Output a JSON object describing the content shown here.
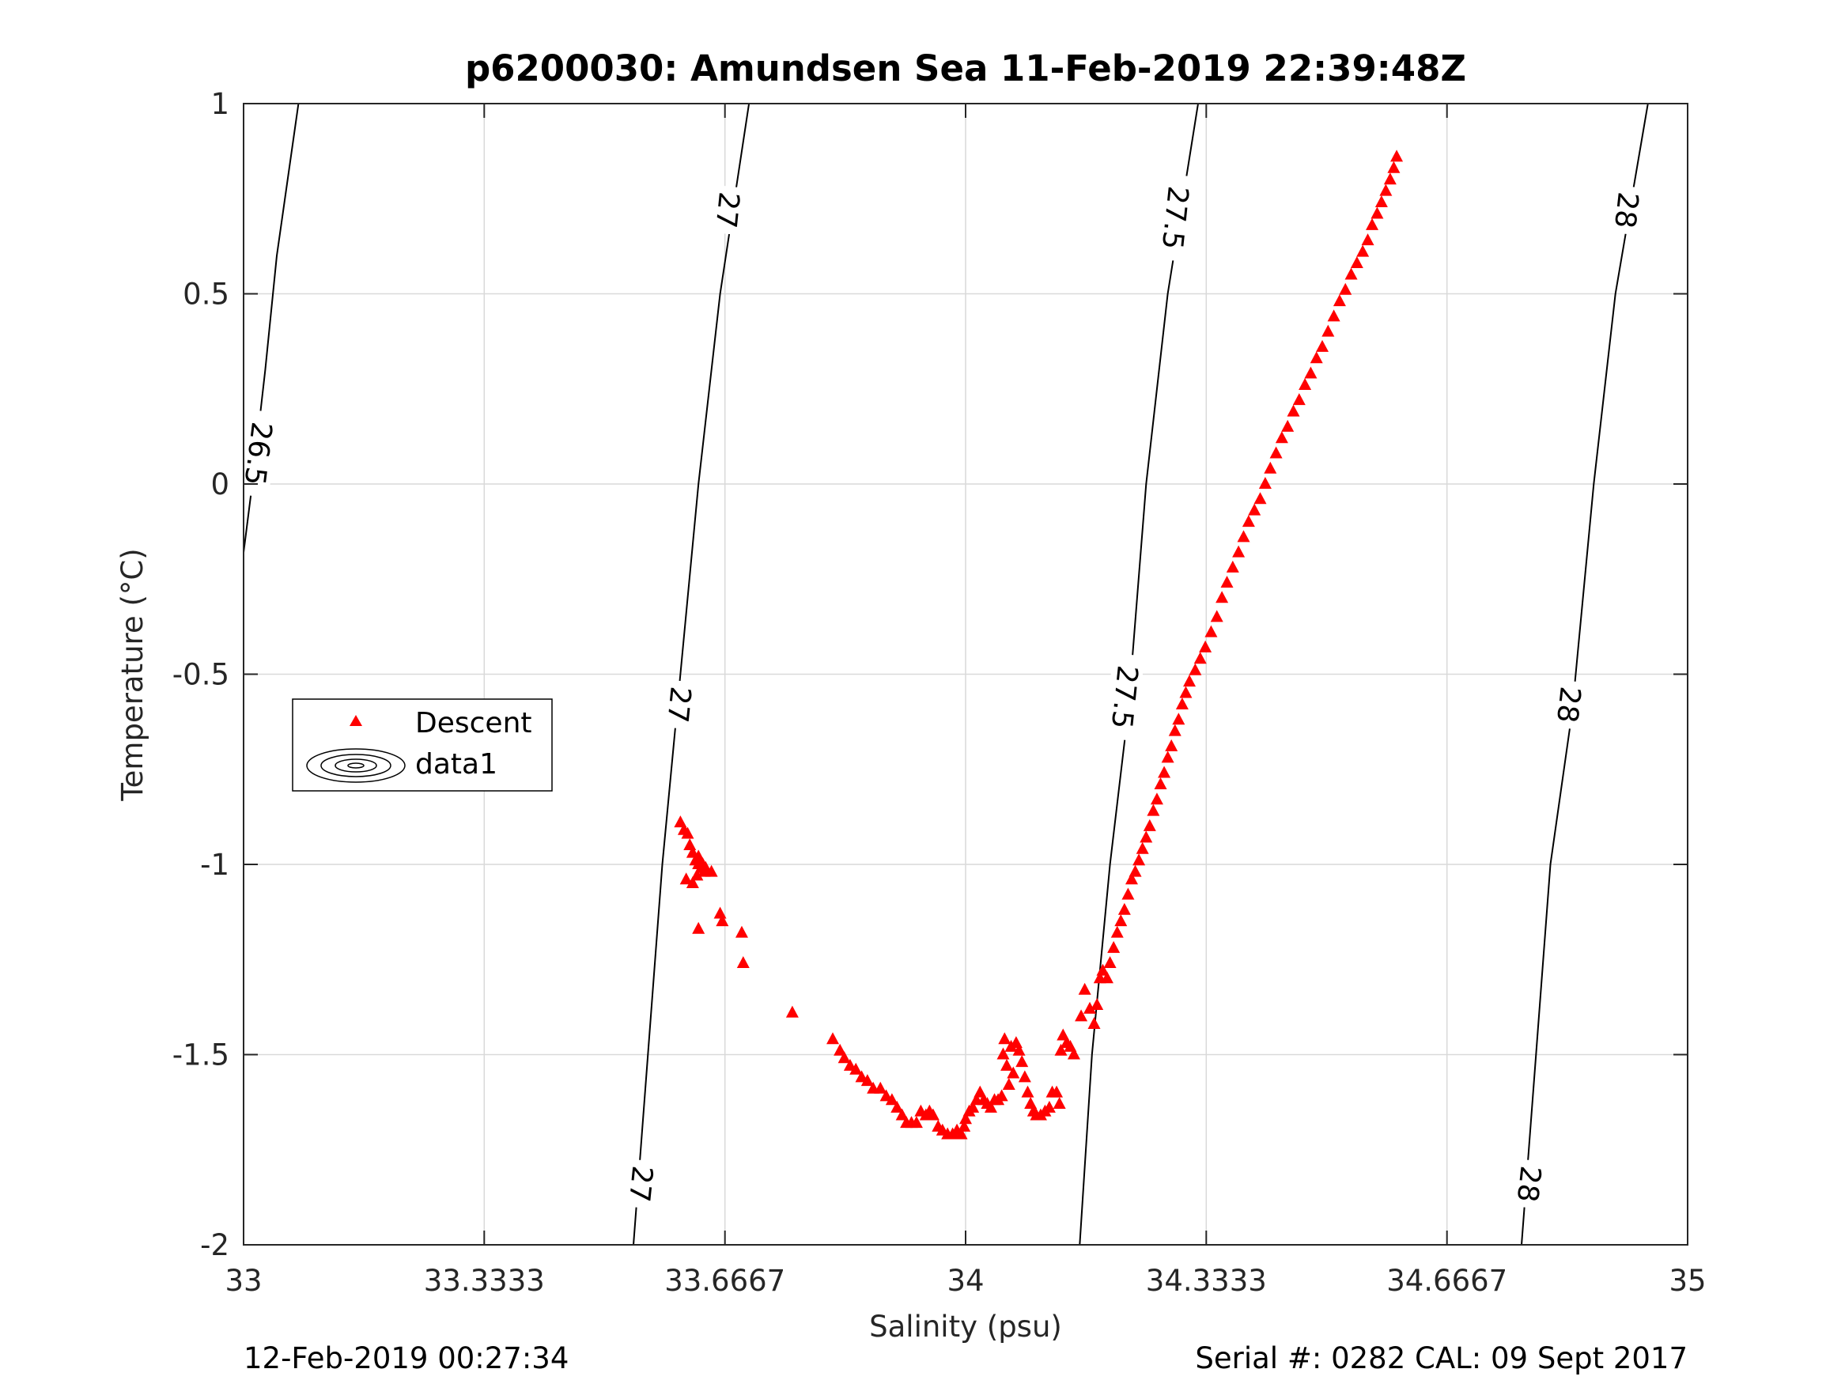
{
  "chart_data": {
    "type": "scatter",
    "title": "p6200030: Amundsen Sea 11-Feb-2019 22:39:48Z",
    "xlabel": "Salinity (psu)",
    "ylabel": "Temperature (°C)",
    "xlim": [
      33,
      35
    ],
    "ylim": [
      -2,
      1
    ],
    "xticks": [
      33,
      33.3333,
      33.6667,
      34,
      34.3333,
      34.6667,
      35
    ],
    "xtick_labels": [
      "33",
      "33.3333",
      "33.6667",
      "34",
      "34.3333",
      "34.6667",
      "35"
    ],
    "yticks": [
      -2,
      -1.5,
      -1,
      -0.5,
      0,
      0.5,
      1
    ],
    "ytick_labels": [
      "-2",
      "-1.5",
      "-1",
      "-0.5",
      "0",
      "0.5",
      "1"
    ],
    "grid": true,
    "legend_position": "left",
    "footer_left": "12-Feb-2019 00:27:34",
    "footer_right": "Serial #: 0282  CAL: 09 Sept 2017",
    "series": [
      {
        "name": "Descent",
        "marker": "triangle",
        "color": "#ff0000",
        "points": [
          [
            33.605,
            -0.89
          ],
          [
            33.61,
            -0.91
          ],
          [
            33.615,
            -0.92
          ],
          [
            33.618,
            -0.95
          ],
          [
            33.622,
            -0.97
          ],
          [
            33.626,
            -0.99
          ],
          [
            33.63,
            -1.0
          ],
          [
            33.634,
            -1.01
          ],
          [
            33.638,
            -1.02
          ],
          [
            33.628,
            -1.03
          ],
          [
            33.622,
            -1.05
          ],
          [
            33.613,
            -1.04
          ],
          [
            33.63,
            -0.98
          ],
          [
            33.64,
            -1.01
          ],
          [
            33.648,
            -1.02
          ],
          [
            33.636,
            -1.0
          ],
          [
            33.63,
            -1.17
          ],
          [
            33.66,
            -1.13
          ],
          [
            33.663,
            -1.15
          ],
          [
            33.69,
            -1.18
          ],
          [
            33.692,
            -1.26
          ],
          [
            33.76,
            -1.39
          ],
          [
            33.816,
            -1.46
          ],
          [
            33.826,
            -1.49
          ],
          [
            33.832,
            -1.51
          ],
          [
            33.84,
            -1.53
          ],
          [
            33.848,
            -1.54
          ],
          [
            33.856,
            -1.56
          ],
          [
            33.864,
            -1.57
          ],
          [
            33.872,
            -1.59
          ],
          [
            33.882,
            -1.59
          ],
          [
            33.89,
            -1.61
          ],
          [
            33.898,
            -1.62
          ],
          [
            33.905,
            -1.64
          ],
          [
            33.912,
            -1.66
          ],
          [
            33.918,
            -1.68
          ],
          [
            33.925,
            -1.68
          ],
          [
            33.932,
            -1.68
          ],
          [
            33.938,
            -1.65
          ],
          [
            33.945,
            -1.66
          ],
          [
            33.95,
            -1.65
          ],
          [
            33.955,
            -1.66
          ],
          [
            33.962,
            -1.69
          ],
          [
            33.968,
            -1.7
          ],
          [
            33.975,
            -1.71
          ],
          [
            33.982,
            -1.71
          ],
          [
            33.988,
            -1.7
          ],
          [
            33.994,
            -1.71
          ],
          [
            33.998,
            -1.69
          ],
          [
            34.0,
            -1.67
          ],
          [
            34.005,
            -1.65
          ],
          [
            34.01,
            -1.64
          ],
          [
            34.015,
            -1.62
          ],
          [
            34.02,
            -1.6
          ],
          [
            34.025,
            -1.62
          ],
          [
            34.03,
            -1.63
          ],
          [
            34.035,
            -1.64
          ],
          [
            34.04,
            -1.62
          ],
          [
            34.045,
            -1.62
          ],
          [
            34.05,
            -1.61
          ],
          [
            34.052,
            -1.5
          ],
          [
            34.054,
            -1.46
          ],
          [
            34.057,
            -1.53
          ],
          [
            34.06,
            -1.58
          ],
          [
            34.063,
            -1.48
          ],
          [
            34.066,
            -1.55
          ],
          [
            34.07,
            -1.47
          ],
          [
            34.074,
            -1.49
          ],
          [
            34.078,
            -1.52
          ],
          [
            34.082,
            -1.56
          ],
          [
            34.086,
            -1.6
          ],
          [
            34.09,
            -1.63
          ],
          [
            34.094,
            -1.65
          ],
          [
            34.098,
            -1.66
          ],
          [
            34.104,
            -1.66
          ],
          [
            34.11,
            -1.65
          ],
          [
            34.116,
            -1.64
          ],
          [
            34.12,
            -1.6
          ],
          [
            34.126,
            -1.6
          ],
          [
            34.13,
            -1.63
          ],
          [
            34.132,
            -1.49
          ],
          [
            34.135,
            -1.45
          ],
          [
            34.14,
            -1.47
          ],
          [
            34.145,
            -1.48
          ],
          [
            34.15,
            -1.5
          ],
          [
            34.16,
            -1.4
          ],
          [
            34.165,
            -1.33
          ],
          [
            34.172,
            -1.38
          ],
          [
            34.178,
            -1.42
          ],
          [
            34.182,
            -1.37
          ],
          [
            34.186,
            -1.3
          ],
          [
            34.19,
            -1.28
          ],
          [
            34.196,
            -1.3
          ],
          [
            34.2,
            -1.26
          ],
          [
            34.205,
            -1.22
          ],
          [
            34.21,
            -1.18
          ],
          [
            34.215,
            -1.15
          ],
          [
            34.22,
            -1.12
          ],
          [
            34.225,
            -1.08
          ],
          [
            34.23,
            -1.04
          ],
          [
            34.235,
            -1.02
          ],
          [
            34.24,
            -0.99
          ],
          [
            34.245,
            -0.96
          ],
          [
            34.25,
            -0.93
          ],
          [
            34.255,
            -0.9
          ],
          [
            34.26,
            -0.86
          ],
          [
            34.265,
            -0.83
          ],
          [
            34.27,
            -0.79
          ],
          [
            34.275,
            -0.76
          ],
          [
            34.28,
            -0.72
          ],
          [
            34.285,
            -0.69
          ],
          [
            34.29,
            -0.65
          ],
          [
            34.295,
            -0.62
          ],
          [
            34.3,
            -0.58
          ],
          [
            34.305,
            -0.55
          ],
          [
            34.31,
            -0.52
          ],
          [
            34.318,
            -0.49
          ],
          [
            34.325,
            -0.46
          ],
          [
            34.332,
            -0.43
          ],
          [
            34.34,
            -0.39
          ],
          [
            34.348,
            -0.35
          ],
          [
            34.355,
            -0.3
          ],
          [
            34.362,
            -0.26
          ],
          [
            34.37,
            -0.22
          ],
          [
            34.378,
            -0.18
          ],
          [
            34.385,
            -0.14
          ],
          [
            34.392,
            -0.1
          ],
          [
            34.4,
            -0.07
          ],
          [
            34.408,
            -0.04
          ],
          [
            34.415,
            0.0
          ],
          [
            34.422,
            0.04
          ],
          [
            34.43,
            0.08
          ],
          [
            34.438,
            0.12
          ],
          [
            34.446,
            0.15
          ],
          [
            34.454,
            0.19
          ],
          [
            34.462,
            0.22
          ],
          [
            34.47,
            0.26
          ],
          [
            34.478,
            0.29
          ],
          [
            34.486,
            0.33
          ],
          [
            34.494,
            0.36
          ],
          [
            34.502,
            0.4
          ],
          [
            34.51,
            0.44
          ],
          [
            34.518,
            0.48
          ],
          [
            34.526,
            0.51
          ],
          [
            34.534,
            0.55
          ],
          [
            34.542,
            0.58
          ],
          [
            34.55,
            0.61
          ],
          [
            34.557,
            0.64
          ],
          [
            34.563,
            0.68
          ],
          [
            34.57,
            0.71
          ],
          [
            34.576,
            0.74
          ],
          [
            34.582,
            0.77
          ],
          [
            34.588,
            0.8
          ],
          [
            34.593,
            0.83
          ],
          [
            34.597,
            0.86
          ]
        ]
      },
      {
        "name": "data1",
        "type": "contour",
        "color": "#000000",
        "levels": [
          {
            "label": "26.5",
            "label_positions": [
              [
                33.02,
                0.08
              ]
            ],
            "points": [
              [
                33.0,
                -0.18
              ],
              [
                33.012,
                0.0
              ],
              [
                33.03,
                0.3
              ],
              [
                33.046,
                0.6
              ],
              [
                33.076,
                1.0
              ]
            ]
          },
          {
            "label": "27",
            "label_positions": [
              [
                33.55,
                -1.84
              ],
              [
                33.603,
                -0.58
              ],
              [
                33.67,
                0.72
              ]
            ],
            "points": [
              [
                33.54,
                -2.0
              ],
              [
                33.56,
                -1.5
              ],
              [
                33.58,
                -1.0
              ],
              [
                33.6,
                -0.6
              ],
              [
                33.63,
                0.0
              ],
              [
                33.66,
                0.5
              ],
              [
                33.7,
                1.0
              ]
            ]
          },
          {
            "label": "27.5",
            "label_positions": [
              [
                34.22,
                -0.56
              ],
              [
                34.29,
                0.7
              ]
            ],
            "points": [
              [
                34.158,
                -2.0
              ],
              [
                34.175,
                -1.5
              ],
              [
                34.2,
                -1.0
              ],
              [
                34.225,
                -0.6
              ],
              [
                34.25,
                0.0
              ],
              [
                34.28,
                0.5
              ],
              [
                34.322,
                1.0
              ]
            ]
          },
          {
            "label": "28",
            "label_positions": [
              [
                34.78,
                -1.84
              ],
              [
                34.835,
                -0.58
              ],
              [
                34.915,
                0.72
              ]
            ],
            "points": [
              [
                34.77,
                -2.0
              ],
              [
                34.79,
                -1.5
              ],
              [
                34.81,
                -1.0
              ],
              [
                34.84,
                -0.6
              ],
              [
                34.87,
                0.0
              ],
              [
                34.9,
                0.5
              ],
              [
                34.945,
                1.0
              ]
            ]
          }
        ]
      }
    ]
  }
}
